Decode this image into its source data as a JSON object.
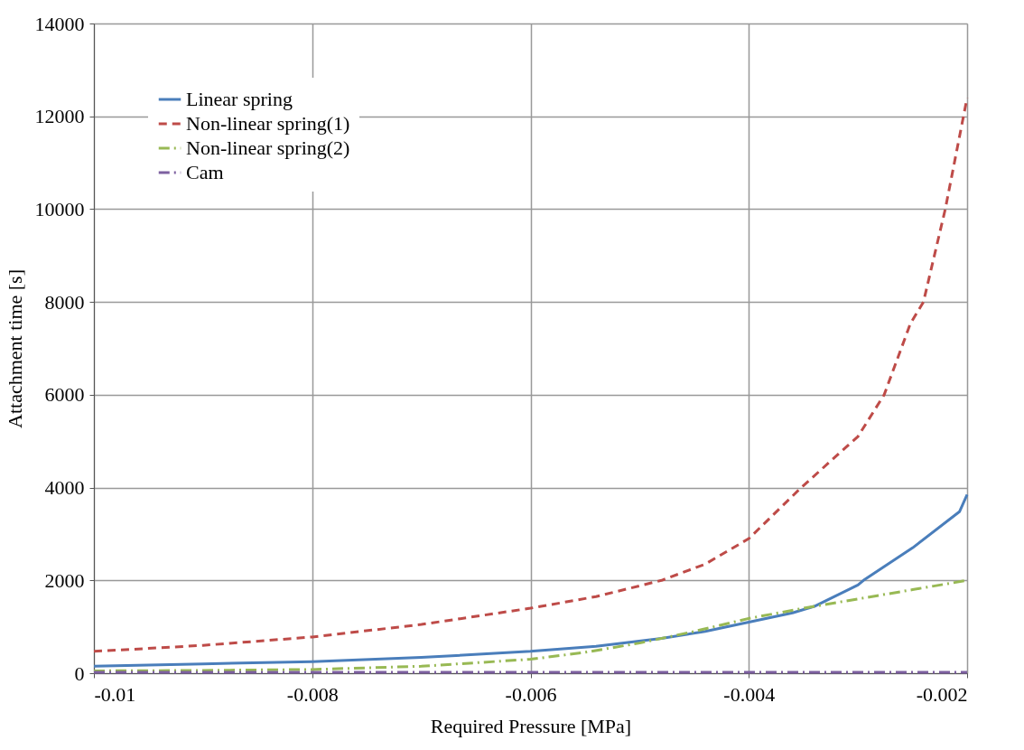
{
  "chart_data": {
    "type": "line",
    "xlabel": "Required Pressure [MPa]",
    "ylabel": "Attachment time [s]",
    "xlim": [
      -0.01,
      -0.002
    ],
    "xticks": [
      -0.01,
      -0.008,
      -0.006,
      -0.004,
      -0.002
    ],
    "ylim": [
      0,
      14000
    ],
    "yticks": [
      0,
      2000,
      4000,
      6000,
      8000,
      10000,
      12000,
      14000
    ],
    "grid": true,
    "legend": "top left",
    "marker": "none",
    "series": [
      {
        "name": "Linear spring",
        "color": "#4a7ebb",
        "line_style": "solid",
        "x": [
          -0.01,
          -0.009,
          -0.008,
          -0.007,
          -0.006,
          -0.0054,
          -0.0048,
          -0.0044,
          -0.004,
          -0.0036,
          -0.0034,
          -0.003,
          -0.00295,
          -0.0025,
          -0.00207,
          -0.002
        ],
        "values": [
          150,
          200,
          250,
          340,
          470,
          580,
          750,
          900,
          1100,
          1300,
          1440,
          1900,
          2000,
          2700,
          3480,
          3850
        ]
      },
      {
        "name": "Non-linear spring(1)",
        "color": "#be4b48",
        "line_style": "dashed",
        "x": [
          -0.01,
          -0.009,
          -0.008,
          -0.007,
          -0.006,
          -0.0054,
          -0.0048,
          -0.0044,
          -0.004,
          -0.00352,
          -0.003,
          -0.00276,
          -0.00252,
          -0.0024,
          -0.0022,
          -0.0021,
          -0.002
        ],
        "values": [
          470,
          600,
          780,
          1050,
          1400,
          1650,
          2000,
          2350,
          2900,
          4000,
          5100,
          6000,
          7530,
          8000,
          10000,
          11200,
          12400
        ]
      },
      {
        "name": "Non-linear spring(2)",
        "color": "#98b954",
        "line_style": "dotted",
        "x": [
          -0.01,
          -0.009,
          -0.008,
          -0.007,
          -0.006,
          -0.0055,
          -0.005,
          -0.0045,
          -0.004,
          -0.0035,
          -0.003,
          -0.0025,
          -0.002
        ],
        "values": [
          50,
          60,
          80,
          150,
          300,
          450,
          650,
          900,
          1180,
          1400,
          1600,
          1800,
          2000
        ]
      },
      {
        "name": "Cam",
        "color": "#7d60a0",
        "line_style": "dotted",
        "x": [
          -0.01,
          -0.008,
          -0.006,
          -0.004,
          -0.002
        ],
        "values": [
          20,
          20,
          20,
          20,
          20
        ]
      }
    ]
  }
}
